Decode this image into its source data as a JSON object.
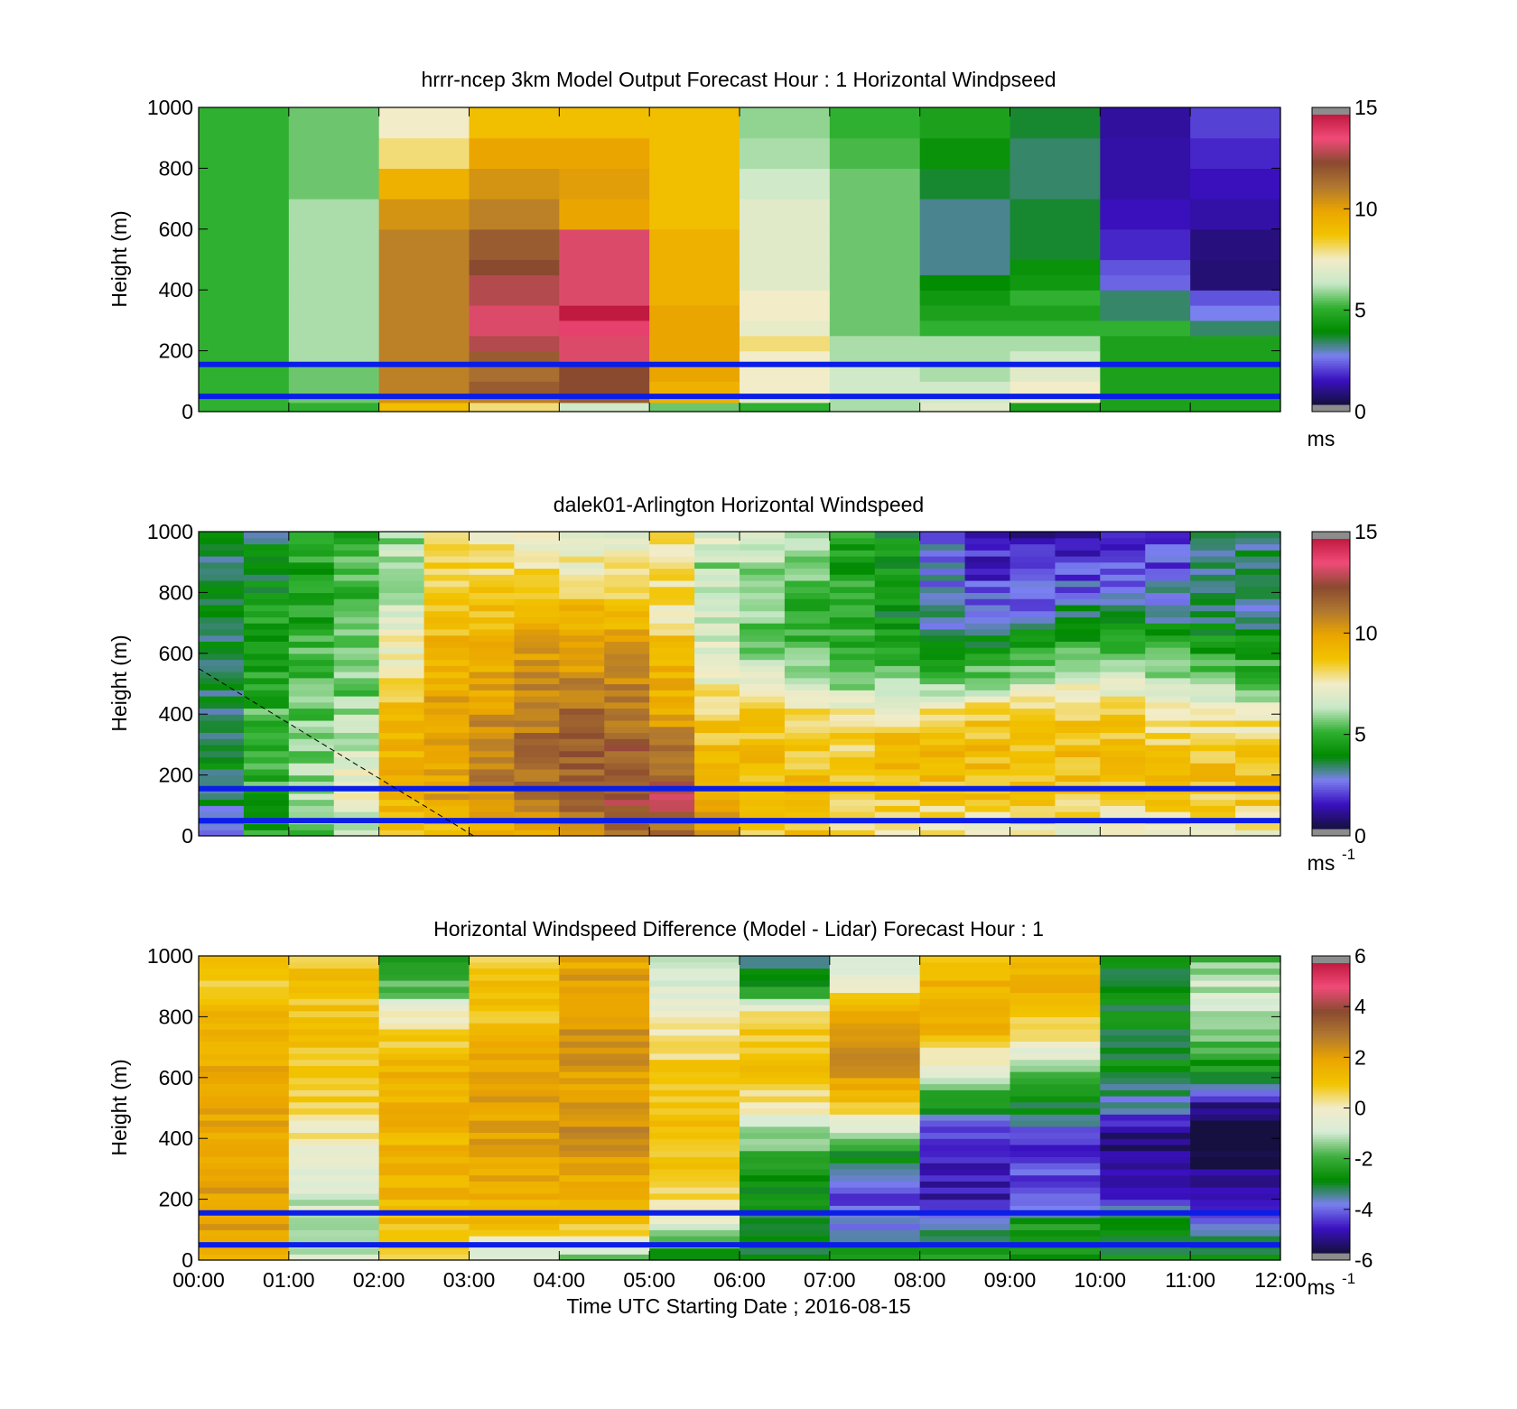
{
  "colors": {
    "ref_line": "#0a1ee8",
    "axis": "#000000",
    "background": "#ffffff",
    "colormap_speed": [
      "#151040",
      "#3a10c0",
      "#7a80ef",
      "#008a00",
      "#30b030",
      "#c8e8c8",
      "#f2ecc8",
      "#f2c400",
      "#eba500",
      "#b07830",
      "#8a4a30",
      "#f04a78",
      "#c01a40"
    ],
    "colormap_diff": [
      "#151040",
      "#3a10c0",
      "#7a80ef",
      "#008a00",
      "#40b040",
      "#d8ecd8",
      "#f2ecc8",
      "#f2c400",
      "#eba500",
      "#b07830",
      "#8a4a30",
      "#f04a78",
      "#c01a40"
    ]
  },
  "shared": {
    "xlabel": "Time UTC  Starting Date ; 2016-08-15",
    "ylabel": "Height (m)",
    "xticks": [
      "00:00",
      "01:00",
      "02:00",
      "03:00",
      "04:00",
      "05:00",
      "06:00",
      "07:00",
      "08:00",
      "09:00",
      "10:00",
      "11:00",
      "12:00"
    ],
    "yticks": [
      "0",
      "200",
      "400",
      "600",
      "800",
      "1000"
    ]
  },
  "chart_data": [
    {
      "type": "heatmap",
      "title": "hrrr-ncep 3km Model Output   Forecast Hour : 1 Horizontal Windpseed",
      "ylabel": "Height (m)",
      "xlim": [
        0,
        12
      ],
      "ylim": [
        0,
        1000
      ],
      "colorbar": {
        "ticks": [
          "0",
          "5",
          "10",
          "15"
        ],
        "range": [
          0,
          15
        ],
        "unit": "ms",
        "unit_sup": ""
      },
      "reference_lines_m": [
        155,
        50
      ],
      "time_columns_hours": [
        0.5,
        1.5,
        2.5,
        3.5,
        4.5,
        5.5,
        6.5,
        7.5,
        8.5,
        9.5,
        10.5,
        11.5
      ],
      "level_edges_m": [
        0,
        30,
        60,
        100,
        150,
        200,
        250,
        300,
        350,
        400,
        450,
        500,
        600,
        700,
        800,
        900,
        1000
      ],
      "values_ms": [
        [
          5,
          5,
          9,
          8,
          6.5,
          5.5,
          5,
          6,
          7,
          4.5,
          4.5,
          4.5
        ],
        [
          5,
          5.5,
          10.5,
          11,
          12,
          9.5,
          7,
          6,
          6.5,
          7.5,
          4.5,
          4.5
        ],
        [
          5,
          5.5,
          11,
          12,
          12.5,
          9.5,
          7.5,
          6.5,
          6.5,
          7.5,
          4.5,
          4.5
        ],
        [
          5,
          5.5,
          11,
          11.5,
          12.5,
          10,
          7.5,
          6.5,
          6,
          7,
          4.5,
          4.5
        ],
        [
          5,
          6,
          11,
          12,
          13.5,
          10,
          7.5,
          6,
          6,
          6.5,
          4.5,
          4.5
        ],
        [
          5,
          6,
          11,
          13,
          13.5,
          10,
          8,
          6,
          6,
          6,
          4.5,
          4.5
        ],
        [
          5,
          6,
          11,
          13.5,
          14,
          10,
          7.2,
          5.5,
          5,
          5,
          5,
          3.2
        ],
        [
          5,
          6,
          11,
          13.5,
          15,
          10,
          7.5,
          5.5,
          4.5,
          4.5,
          3.2,
          2.5
        ],
        [
          5,
          6,
          11,
          13,
          13.5,
          9.5,
          7.5,
          5.5,
          4.2,
          5,
          3.2,
          2
        ],
        [
          5,
          6,
          11,
          13,
          13.5,
          9.5,
          7,
          5.5,
          3.8,
          4.2,
          2.2,
          0.5
        ],
        [
          5,
          6,
          11,
          12.5,
          13.5,
          9.5,
          7,
          5.5,
          3,
          4,
          2,
          0.5
        ],
        [
          5,
          6,
          11,
          12,
          13.5,
          9.5,
          7,
          5.5,
          3,
          3.5,
          1.5,
          0.6
        ],
        [
          5,
          6,
          10.5,
          11,
          10,
          9,
          7,
          5.5,
          3,
          3.5,
          1.2,
          1
        ],
        [
          5,
          5.5,
          9.5,
          10.5,
          10.2,
          9,
          6.5,
          5.5,
          3.5,
          3.2,
          1,
          1.2
        ],
        [
          5,
          5.5,
          8,
          10,
          10,
          9,
          6,
          5.2,
          4,
          3.2,
          1,
          1.5
        ],
        [
          5,
          5.5,
          7.5,
          9,
          9,
          9,
          5.8,
          5,
          4.5,
          3.5,
          0.9,
          1.8
        ],
        [
          4.8,
          5.2,
          7,
          7.8,
          9,
          9,
          5.5,
          4.8,
          4.5,
          2.8,
          0.8,
          2
        ]
      ]
    },
    {
      "type": "heatmap",
      "title": "dalek01-Arlington  Horizontal Windspeed",
      "ylabel": "Height (m)",
      "xlim": [
        0,
        12
      ],
      "ylim": [
        0,
        1000
      ],
      "colorbar": {
        "ticks": [
          "0",
          "5",
          "10",
          "15"
        ],
        "range": [
          0,
          15
        ],
        "unit": "ms",
        "unit_sup": "-1"
      },
      "reference_lines_m": [
        155,
        50
      ],
      "data_end_hours": 11.9,
      "dashed_line": {
        "x": [
          0,
          3.05
        ],
        "y": [
          550,
          0
        ]
      },
      "time_columns_hours": [
        0.25,
        0.75,
        1.25,
        1.75,
        2.25,
        2.75,
        3.25,
        3.75,
        4.25,
        4.75,
        5.25,
        5.75,
        6.25,
        6.75,
        7.25,
        7.75,
        8.25,
        8.75,
        9.25,
        9.75,
        10.25,
        10.75,
        11.25,
        11.75
      ],
      "profile_levels_m": [
        0,
        100,
        200,
        300,
        400,
        500,
        600,
        700,
        800,
        900,
        1000
      ],
      "profiles_ms": [
        [
          3,
          3,
          3.5,
          3.5,
          3.5,
          3.5,
          3.5,
          3.5,
          3.5,
          3.5,
          3.5
        ],
        [
          4.5,
          4.5,
          5,
          5,
          5,
          4.5,
          4.5,
          4.5,
          4,
          3.5,
          3.5
        ],
        [
          5.5,
          6,
          6,
          5.5,
          5.5,
          5,
          5,
          4.5,
          4.5,
          4.5,
          4.5
        ],
        [
          6.5,
          7,
          7,
          6.5,
          6,
          5.5,
          5.5,
          5,
          5,
          5,
          5
        ],
        [
          8.5,
          9.5,
          9.5,
          9.5,
          9,
          8.5,
          7.5,
          7,
          6.5,
          6,
          6
        ],
        [
          9,
          10,
          10,
          10,
          10,
          9.5,
          9.5,
          9,
          8.5,
          8,
          7.5
        ],
        [
          9.5,
          10.5,
          11,
          11,
          10.5,
          10,
          9.5,
          9,
          8.5,
          8,
          7.5
        ],
        [
          10,
          11,
          11.5,
          11.5,
          11,
          10.5,
          10,
          9.5,
          8.5,
          8,
          7.5
        ],
        [
          10.5,
          12,
          12,
          12,
          11.5,
          11,
          10,
          9.5,
          8.5,
          7.5,
          7
        ],
        [
          11,
          12.5,
          12.5,
          12,
          11.5,
          11,
          10.5,
          9.5,
          8.5,
          7.5,
          7
        ],
        [
          11,
          13,
          12,
          11,
          10,
          9.5,
          9.5,
          8,
          8,
          8,
          8
        ],
        [
          10,
          10.5,
          9.5,
          9,
          8.5,
          7.5,
          7,
          6.5,
          6,
          6,
          7
        ],
        [
          8.5,
          9,
          9,
          9,
          8.5,
          7,
          6,
          5.5,
          5.5,
          6,
          6.5
        ],
        [
          8.5,
          9,
          9,
          8.5,
          8,
          6.5,
          5.5,
          5,
          5,
          5.5,
          6.5
        ],
        [
          8,
          8.5,
          8.5,
          8.5,
          7.5,
          6,
          5,
          4.5,
          4.5,
          4.5,
          4.5
        ],
        [
          7.5,
          8.5,
          9,
          9,
          8,
          6,
          4.5,
          4,
          4,
          4,
          4
        ],
        [
          7.5,
          8.5,
          9,
          9,
          8,
          5.5,
          4,
          3,
          2.5,
          2.5,
          2
        ],
        [
          7.5,
          8.5,
          9,
          9,
          8.5,
          6,
          4.5,
          3,
          2,
          1.5,
          1.5
        ],
        [
          7.5,
          8.5,
          9,
          9,
          8.5,
          6.5,
          4.5,
          3,
          2,
          1.5,
          1
        ],
        [
          7,
          8.5,
          9,
          9,
          8.5,
          7,
          5,
          3.5,
          2.5,
          1.5,
          1
        ],
        [
          7,
          8.5,
          9,
          9,
          8.5,
          7,
          5,
          3.5,
          2.5,
          2,
          1.5
        ],
        [
          7,
          8.5,
          9,
          8.5,
          8,
          6.5,
          5,
          3.5,
          2.5,
          2,
          2
        ],
        [
          7,
          8.5,
          9,
          8.5,
          7.5,
          6,
          4.5,
          3.5,
          3,
          3,
          3.5
        ],
        [
          7,
          8.5,
          9,
          8.5,
          7.5,
          5.5,
          4.5,
          3.5,
          3,
          3,
          3.5
        ]
      ]
    },
    {
      "type": "heatmap",
      "title": "Horizontal Windspeed Difference (Model - Lidar) Forecast Hour : 1",
      "ylabel": "Height (m)",
      "xlabel": "Time UTC  Starting Date ; 2016-08-15",
      "xlim": [
        0,
        12
      ],
      "ylim": [
        0,
        1000
      ],
      "colorbar": {
        "ticks": [
          "-6",
          "-4",
          "-2",
          "0",
          "2",
          "4",
          "6"
        ],
        "range": [
          -6,
          6
        ],
        "unit": "ms",
        "unit_sup": "-1"
      },
      "reference_lines_m": [
        155,
        50
      ],
      "time_columns_hours": [
        0.5,
        1.5,
        2.5,
        3.5,
        4.5,
        5.5,
        6.5,
        7.5,
        8.5,
        9.5,
        10.5,
        11.5
      ],
      "profile_levels_m": [
        0,
        100,
        200,
        300,
        400,
        500,
        600,
        700,
        800,
        900,
        1000
      ],
      "profiles_ms": [
        [
          2,
          2,
          2,
          2,
          2,
          2,
          2,
          1.5,
          1.5,
          1,
          1
        ],
        [
          -1,
          -1,
          -1,
          -0.5,
          0,
          0.5,
          1,
          1,
          1,
          1,
          1
        ],
        [
          1,
          1,
          1.5,
          1.5,
          1.5,
          1.5,
          1.5,
          1,
          0,
          -2,
          -3
        ],
        [
          -1,
          1,
          1.5,
          2,
          2,
          2,
          2,
          1.5,
          1,
          1,
          1
        ],
        [
          -2,
          1,
          1.5,
          2,
          2.5,
          2.5,
          2,
          2.5,
          2.5,
          2,
          2
        ],
        [
          -3,
          -1,
          0.5,
          1,
          1,
          1,
          1,
          0.5,
          0,
          -1,
          -1.5
        ],
        [
          -3,
          -3,
          -3,
          -2.5,
          -1.5,
          0,
          1,
          1,
          0.5,
          -3,
          -3.5
        ],
        [
          -2,
          -4,
          -4.5,
          -4,
          -1.5,
          0.5,
          2,
          2.5,
          2,
          0,
          -1
        ],
        [
          -2,
          -3.5,
          -5,
          -5,
          -5,
          -3,
          -1,
          0.5,
          2,
          1.5,
          1
        ],
        [
          -3,
          -2.5,
          -4,
          -4.5,
          -4.5,
          -3,
          -2.5,
          0,
          1,
          1.5,
          1.5
        ],
        [
          -3,
          -3,
          -4.5,
          -5.5,
          -5.5,
          -4,
          -3,
          -3,
          -3,
          -3,
          -3
        ],
        [
          -3,
          -3.5,
          -5,
          -5.5,
          -7,
          -5.5,
          -3,
          -2,
          -1.5,
          -1,
          -2
        ]
      ]
    }
  ]
}
